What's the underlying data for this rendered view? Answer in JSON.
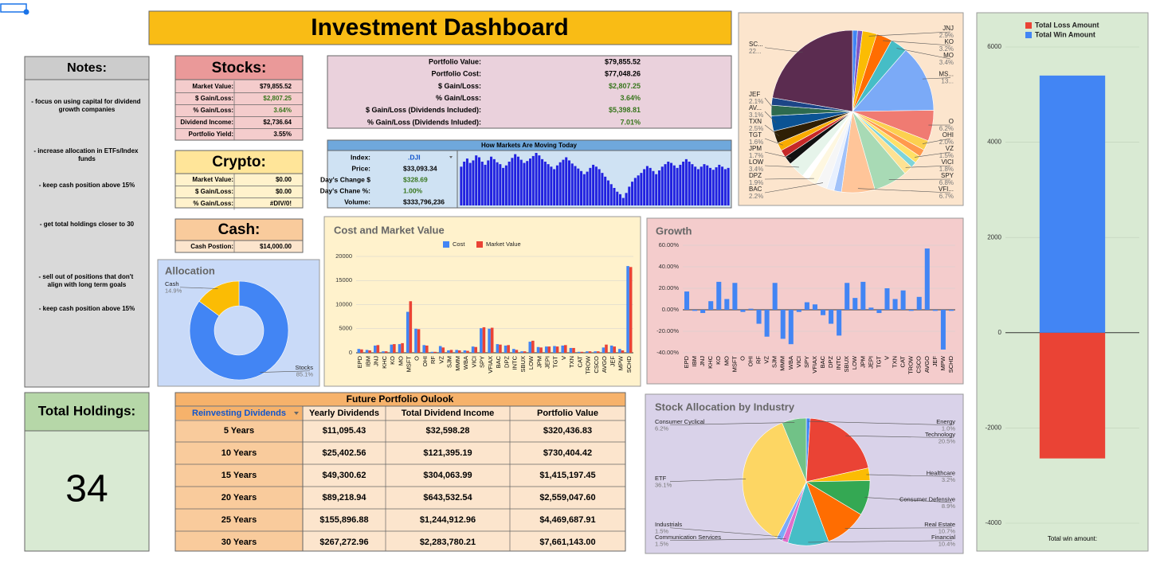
{
  "title": "Investment Dashboard",
  "notes": {
    "title": "Notes:",
    "items": [
      "- focus on using capital for dividend growth companies",
      "- increase allocation in ETFs/Index funds",
      "- keep cash position above 15%",
      "- get total holdings closer to 30",
      "- sell out of positions that don't align with long term goals",
      "- keep cash position above 15%"
    ]
  },
  "stocks": {
    "title": "Stocks:",
    "rows": [
      [
        "Market Value:",
        "$79,855.52"
      ],
      [
        "$ Gain/Loss:",
        "$2,807.25"
      ],
      [
        "% Gain/Loss:",
        "3.64%"
      ],
      [
        "Dividend Income:",
        "$2,736.64"
      ],
      [
        "Portfolio Yield:",
        "3.55%"
      ]
    ]
  },
  "crypto": {
    "title": "Crypto:",
    "rows": [
      [
        "Market Value:",
        "$0.00"
      ],
      [
        "$ Gain/Loss:",
        "$0.00"
      ],
      [
        "% Gain/Loss:",
        "#DIV/0!"
      ]
    ]
  },
  "cash": {
    "title": "Cash:",
    "rows": [
      [
        "Cash Postion:",
        "$14,000.00"
      ]
    ]
  },
  "portfolio": {
    "rows": [
      [
        "Portfolio Value:",
        "$79,855.52"
      ],
      [
        "Portfolio Cost:",
        "$77,048.26"
      ],
      [
        "$ Gain/Loss:",
        "$2,807.25"
      ],
      [
        "% Gain/Loss:",
        "3.64%"
      ],
      [
        "$ Gain/Loss (Dividends Included):",
        "$5,398.81"
      ],
      [
        "% Gain/Loss (Dividends Inluded):",
        "7.01%"
      ]
    ]
  },
  "markets": {
    "rows": [
      [
        "Index:",
        ".DJI"
      ],
      [
        "Price:",
        "$33,093.34"
      ],
      [
        "Day's Change $",
        "$328.69"
      ],
      [
        "Day's Chane %:",
        "1.00%"
      ],
      [
        "Volume:",
        "$333,796,236"
      ]
    ]
  },
  "total_holdings": {
    "title": "Total Holdings:",
    "value": 34
  },
  "outlook": {
    "title": "Future Portfolio Oulook",
    "headers": [
      "Reinvesting Dividends",
      "Yearly Dividends",
      "Total Dividend Income",
      "Portfolio Value"
    ],
    "rows": [
      [
        "5 Years",
        "$11,095.43",
        "$32,598.28",
        "$320,436.83"
      ],
      [
        "10 Years",
        "$25,402.56",
        "$121,395.19",
        "$730,404.42"
      ],
      [
        "15 Years",
        "$49,300.62",
        "$304,063.99",
        "$1,415,197.45"
      ],
      [
        "20 Years",
        "$89,218.94",
        "$643,532.54",
        "$2,559,047.60"
      ],
      [
        "25 Years",
        "$155,896.88",
        "$1,244,912.96",
        "$4,469,687.91"
      ],
      [
        "30 Years",
        "$267,272.96",
        "$2,283,780.21",
        "$7,661,143.00"
      ]
    ]
  },
  "chart_data": [
    {
      "type": "pie",
      "categories": [
        null,
        null,
        "JNJ",
        "KO",
        "MO",
        "MS...",
        "O",
        "OHI",
        null,
        "VZ",
        null,
        "VICI",
        "SPY",
        "VFI...",
        null,
        null,
        "BAC",
        "DPZ",
        null,
        "LOW",
        "JPM",
        null,
        "TGT",
        "TXN",
        "AV...",
        "JEF",
        null,
        "SC..."
      ],
      "values": [
        1.0,
        1.0,
        2.9,
        3.2,
        3.4,
        13.5,
        6.2,
        2.0,
        1.5,
        1.5,
        1.2,
        1.8,
        6.8,
        6.7,
        1.5,
        1.5,
        2.2,
        1.9,
        1.3,
        3.4,
        1.7,
        1.5,
        1.6,
        2.5,
        3.1,
        2.1,
        1.5,
        22.5
      ],
      "value_labels": [
        null,
        null,
        "2.9%",
        "3.2%",
        "3.4%",
        "13...",
        "6.2%",
        "2.0%",
        null,
        "1.5%",
        null,
        "1.8%",
        "6.8%",
        "6.7%",
        null,
        null,
        "2.2%",
        "1.9%",
        null,
        "3.4%",
        "1.7%",
        null,
        "1.6%",
        "2.5%",
        "3.1%",
        "2.1%",
        null,
        "22..."
      ],
      "colors": [
        "#4285f4",
        "#7e57c2",
        "#fbbc04",
        "#ff6d01",
        "#46bdc6",
        "#7baaf7",
        "#f07b72",
        "#fcd04f",
        "#ff994d",
        "#ffe066",
        "#7ed4da",
        "#fde293",
        "#a8dab5",
        "#ffc599",
        "#a1c2fa",
        "#e8f0fe",
        "#f6f6f6",
        "#fef7e0",
        "#ffffff",
        "#e6f4ea",
        "#111111",
        "#c62828",
        "#f9ab00",
        "#2e1f05",
        "#0b5394",
        "#2d6a4f",
        "#1c4587",
        "#5b2c50"
      ]
    },
    {
      "type": "bar",
      "categories": [
        "Total win amount:"
      ],
      "stacked": true,
      "series": [
        {
          "name": "Total Loss Amount",
          "color": "#ea4335",
          "values": [
            -2640
          ]
        },
        {
          "name": "Total Win Amount",
          "color": "#4285f4",
          "values": [
            5400
          ]
        }
      ],
      "ylim": [
        -4000,
        6000
      ],
      "yticks": [
        -4000,
        -2000,
        0,
        2000,
        4000,
        6000
      ],
      "grid": true,
      "legend": "top"
    },
    {
      "type": "donut",
      "title": "Allocation",
      "categories": [
        "Stocks",
        "Cash"
      ],
      "values": [
        85.1,
        14.9
      ],
      "value_labels": [
        "85.1%",
        "14.9%"
      ],
      "colors": [
        "#4285f4",
        "#fbbc04"
      ]
    },
    {
      "type": "bar",
      "title": "Cost and Market Value",
      "categories": [
        "EPD",
        "IBM",
        "JNJ",
        "KHC",
        "KO",
        "MO",
        "MSFT",
        "O",
        "OHI",
        "RF",
        "VZ",
        "SJM",
        "MMM",
        "WBA",
        "VICI",
        "SPY",
        "VFIAX",
        "BAC",
        "DPZ",
        "INTC",
        "SBUX",
        "LOW",
        "JPM",
        "JEPI",
        "TGT",
        "V",
        "TXN",
        "CAT",
        "TROW",
        "CSCO",
        "AVGO",
        "JEF",
        "MPW",
        "SCHD"
      ],
      "series": [
        {
          "name": "Cost",
          "color": "#4285f4",
          "values": [
            800,
            600,
            1500,
            300,
            1700,
            1800,
            8500,
            5000,
            1600,
            200,
            1400,
            500,
            600,
            500,
            1300,
            5100,
            5000,
            1800,
            1500,
            800,
            300,
            2300,
            1200,
            1300,
            1400,
            1500,
            1000,
            200,
            300,
            300,
            1100,
            1500,
            800,
            18000
          ]
        },
        {
          "name": "Market Value",
          "color": "#ea4335",
          "values": [
            700,
            500,
            1600,
            300,
            1800,
            2000,
            10700,
            4900,
            1500,
            200,
            1100,
            600,
            500,
            400,
            1200,
            5300,
            5200,
            1700,
            1600,
            600,
            300,
            2500,
            1100,
            1300,
            1300,
            1600,
            1000,
            200,
            300,
            300,
            1700,
            1300,
            500,
            17800
          ]
        }
      ],
      "ylim": [
        0,
        20000
      ],
      "yticks": [
        0,
        5000,
        10000,
        15000,
        20000
      ],
      "grid": true,
      "legend": "top"
    },
    {
      "type": "bar",
      "title": "Growth",
      "categories": [
        "EPD",
        "IBM",
        "JNJ",
        "KHC",
        "KO",
        "MO",
        "MSFT",
        "O",
        "OHI",
        "RF",
        "VZ",
        "SJM",
        "MMM",
        "WBA",
        "VICI",
        "SPY",
        "VFIAX",
        "BAC",
        "DPZ",
        "INTC",
        "SBUX",
        "LOW",
        "JPM",
        "JEPI",
        "TGT",
        "V",
        "TXN",
        "CAT",
        "TROW",
        "CSCO",
        "AVGO",
        "JEF",
        "MPW",
        "SCHD"
      ],
      "values": [
        17,
        -1,
        -3,
        8,
        26,
        10,
        25,
        -2,
        1,
        -13,
        -25,
        25,
        -27,
        -32,
        -2,
        7,
        5,
        -5,
        -13,
        -24,
        25,
        11,
        26,
        2,
        -3,
        20,
        10,
        18,
        -1,
        12,
        57,
        -1,
        -37,
        -1
      ],
      "color": "#4285f4",
      "ylim": [
        -40,
        60
      ],
      "yticks": [
        {
          "value": -40,
          "label": "-40.00%"
        },
        {
          "value": -20,
          "label": "-20.00%"
        },
        {
          "value": 0,
          "label": "0.00%"
        },
        {
          "value": 20,
          "label": "20.00%"
        },
        {
          "value": 40,
          "label": "40.00%"
        },
        {
          "value": 60,
          "label": "60.00%"
        }
      ],
      "grid": true
    },
    {
      "type": "pie",
      "title": "Stock Allocation by Industry",
      "categories": [
        "Energy",
        "Technology",
        "Healthcare",
        "Consumer Defensive",
        "Real Estate",
        "Financial",
        "Communication Services",
        "Industrials",
        "ETF",
        "Consumer Cyclical"
      ],
      "values": [
        1.0,
        20.5,
        3.2,
        8.9,
        10.7,
        10.4,
        1.5,
        1.5,
        36.1,
        6.2
      ],
      "value_labels": [
        "1.0%",
        "20.5%",
        "3.2%",
        "8.9%",
        "10.7%",
        "10.4%",
        "1.5%",
        "1.5%",
        "36.1%",
        "6.2%"
      ],
      "colors": [
        "#4285f4",
        "#ea4335",
        "#fbbc04",
        "#34a853",
        "#ff6d01",
        "#46bdc6",
        "#e06ecb",
        "#7baaf7",
        "#fdd663",
        "#71c287"
      ]
    },
    {
      "type": "bar",
      "title": "How Markets Are Moving Today",
      "color": "#2121e0",
      "values": [
        62,
        70,
        75,
        68,
        72,
        80,
        77,
        70,
        65,
        72,
        78,
        74,
        69,
        66,
        60,
        64,
        70,
        76,
        82,
        78,
        73,
        68,
        71,
        75,
        79,
        84,
        80,
        74,
        70,
        66,
        62,
        58,
        64,
        69,
        73,
        77,
        72,
        67,
        63,
        59,
        55,
        50,
        54,
        60,
        65,
        62,
        58,
        52,
        46,
        40,
        34,
        28,
        22,
        18,
        12,
        20,
        30,
        38,
        44,
        48,
        52,
        58,
        63,
        60,
        55,
        50,
        56,
        62,
        66,
        70,
        68,
        64,
        60,
        65,
        70,
        74,
        70,
        66,
        62,
        58,
        62,
        66,
        64,
        60,
        57,
        61,
        65,
        62,
        58,
        60
      ]
    }
  ]
}
